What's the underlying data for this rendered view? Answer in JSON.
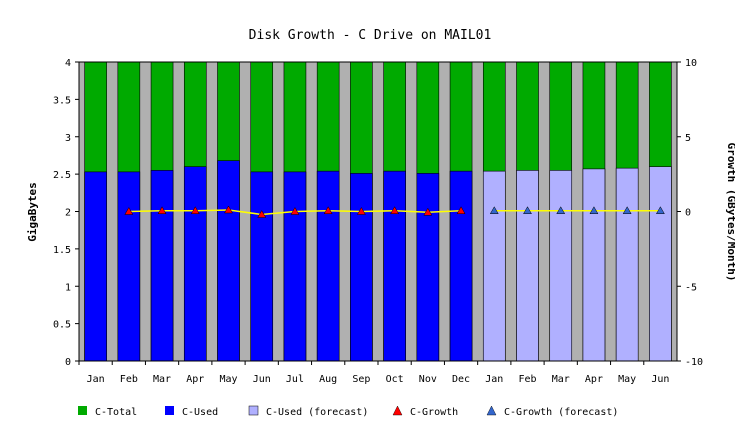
{
  "chart_data": {
    "type": "bar",
    "title": "Disk Growth - C Drive on MAIL01",
    "ylabel": "GigaBytes",
    "y2label": "Growth (GBytes/Month)",
    "ylim": [
      0,
      4
    ],
    "y2lim": [
      -10,
      10
    ],
    "yticks": [
      "0",
      "0.5",
      "1",
      "1.5",
      "2",
      "2.5",
      "3",
      "3.5",
      "4"
    ],
    "y2ticks": [
      "-10",
      "-5",
      "0",
      "5",
      "10"
    ],
    "categories": [
      "Jan",
      "Feb",
      "Mar",
      "Apr",
      "May",
      "Jun",
      "Jul",
      "Aug",
      "Sep",
      "Oct",
      "Nov",
      "Dec",
      "Jan",
      "Feb",
      "Mar",
      "Apr",
      "May",
      "Jun"
    ],
    "forecast_start_index": 12,
    "background": "#b0b0b0",
    "series": [
      {
        "name": "C-Total",
        "kind": "bar",
        "color": "#00aa00",
        "values": [
          4,
          4,
          4,
          4,
          4,
          4,
          4,
          4,
          4,
          4,
          4,
          4,
          4,
          4,
          4,
          4,
          4,
          4
        ]
      },
      {
        "name": "C-Used",
        "kind": "bar",
        "color": "#0000ff",
        "values": [
          2.53,
          2.53,
          2.55,
          2.6,
          2.68,
          2.53,
          2.53,
          2.54,
          2.51,
          2.54,
          2.51,
          2.54,
          null,
          null,
          null,
          null,
          null,
          null
        ]
      },
      {
        "name": "C-Used (forecast)",
        "kind": "bar",
        "color": "#b0b0ff",
        "values": [
          null,
          null,
          null,
          null,
          null,
          null,
          null,
          null,
          null,
          null,
          null,
          null,
          2.54,
          2.55,
          2.55,
          2.57,
          2.58,
          2.6
        ]
      },
      {
        "name": "C-Growth",
        "kind": "line",
        "axis": "y2",
        "color": "#ff0000",
        "line_color": "#ffff00",
        "values": [
          null,
          0.0,
          0.05,
          0.05,
          0.1,
          -0.2,
          0.0,
          0.05,
          0.0,
          0.05,
          -0.05,
          0.05,
          null,
          null,
          null,
          null,
          null,
          null
        ]
      },
      {
        "name": "C-Growth (forecast)",
        "kind": "line",
        "axis": "y2",
        "color": "#3366cc",
        "line_color": "#ffff00",
        "values": [
          null,
          null,
          null,
          null,
          null,
          null,
          null,
          null,
          null,
          null,
          null,
          null,
          0.05,
          0.05,
          0.05,
          0.05,
          0.05,
          0.05
        ]
      }
    ],
    "legend_position": "bottom"
  }
}
